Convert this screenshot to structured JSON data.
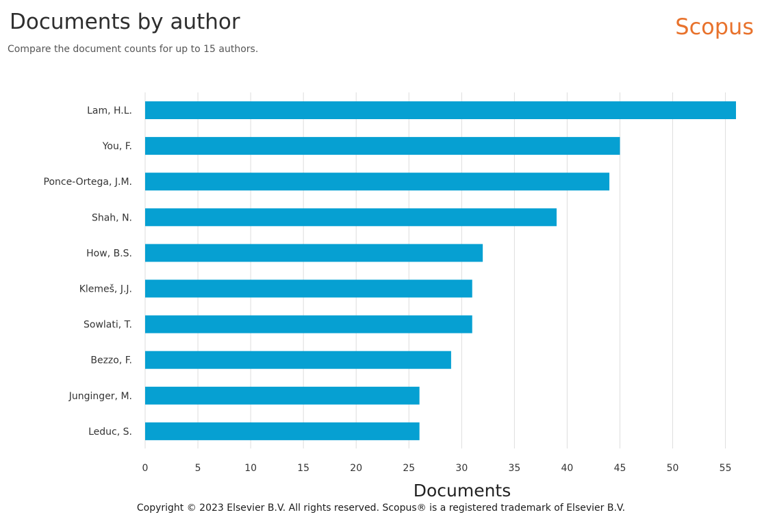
{
  "header": {
    "title": "Documents by author",
    "subtitle": "Compare the document counts for up to 15 authors.",
    "brand": "Scopus"
  },
  "colors": {
    "bar": "#06a0d2",
    "brand": "#e8722c",
    "grid": "#dddddd"
  },
  "chart_data": {
    "type": "bar",
    "orientation": "horizontal",
    "categories": [
      "Lam, H.L.",
      "You, F.",
      "Ponce-Ortega, J.M.",
      "Shah, N.",
      "How, B.S.",
      "Klemeš, J.J.",
      "Sowlati, T.",
      "Bezzo, F.",
      "Junginger, M.",
      "Leduc, S."
    ],
    "values": [
      56,
      45,
      44,
      39,
      32,
      31,
      31,
      29,
      26,
      26
    ],
    "xlabel": "Documents",
    "ylabel": "",
    "xlim": [
      0,
      56
    ],
    "xticks": [
      0,
      5,
      10,
      15,
      20,
      25,
      30,
      35,
      40,
      45,
      50,
      55
    ],
    "grid": true
  },
  "footer": {
    "copyright": "Copyright © 2023 Elsevier B.V. All rights reserved. Scopus® is a registered trademark of Elsevier B.V."
  }
}
